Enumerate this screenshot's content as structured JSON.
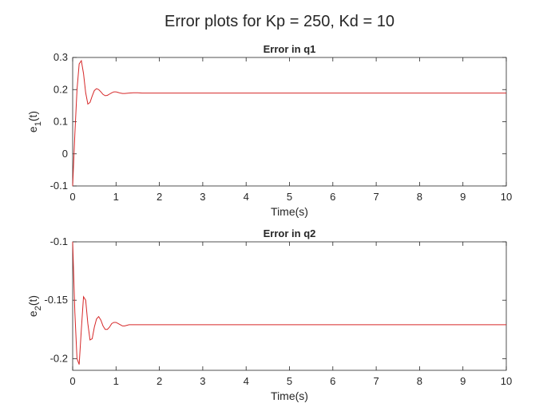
{
  "figure": {
    "title": "Error plots for Kp = 250, Kd = 10"
  },
  "colors": {
    "line": "#d62728",
    "axes": "#262626",
    "background": "#ffffff"
  },
  "chart_data": [
    {
      "type": "line",
      "title": "Error in q1",
      "xlabel": "Time(s)",
      "ylabel": {
        "base": "e",
        "sub": "1",
        "suffix": "(t)"
      },
      "xlim": [
        0,
        10
      ],
      "ylim": [
        -0.1,
        0.3
      ],
      "xticks": [
        0,
        1,
        2,
        3,
        4,
        5,
        6,
        7,
        8,
        9,
        10
      ],
      "xtick_labels": [
        "0",
        "1",
        "2",
        "3",
        "4",
        "5",
        "6",
        "7",
        "8",
        "9",
        "10"
      ],
      "yticks": [
        -0.1,
        0,
        0.1,
        0.2,
        0.3
      ],
      "ytick_labels": [
        "-0.1",
        "0",
        "0.1",
        "0.2",
        "0.3"
      ],
      "grid": false,
      "series": [
        {
          "color": "#d62728",
          "x": [
            0,
            0.05,
            0.1,
            0.15,
            0.2,
            0.25,
            0.3,
            0.35,
            0.4,
            0.45,
            0.5,
            0.55,
            0.6,
            0.65,
            0.7,
            0.75,
            0.8,
            0.85,
            0.9,
            0.95,
            1.0,
            1.05,
            1.1,
            1.15,
            1.2,
            1.3,
            1.4,
            1.5,
            1.6,
            1.8,
            2.0,
            3.0,
            4.0,
            5.0,
            6.0,
            7.0,
            8.0,
            9.0,
            10.0
          ],
          "y": [
            -0.1,
            0.06,
            0.2,
            0.28,
            0.29,
            0.25,
            0.19,
            0.155,
            0.16,
            0.18,
            0.197,
            0.203,
            0.2,
            0.193,
            0.185,
            0.181,
            0.182,
            0.186,
            0.19,
            0.193,
            0.193,
            0.191,
            0.189,
            0.188,
            0.188,
            0.189,
            0.19,
            0.19,
            0.189,
            0.189,
            0.189,
            0.189,
            0.189,
            0.189,
            0.189,
            0.189,
            0.189,
            0.189,
            0.189
          ]
        }
      ]
    },
    {
      "type": "line",
      "title": "Error in q2",
      "xlabel": "Time(s)",
      "ylabel": {
        "base": "e",
        "sub": "2",
        "suffix": "(t)"
      },
      "xlim": [
        0,
        10
      ],
      "ylim": [
        -0.21,
        -0.1
      ],
      "xticks": [
        0,
        1,
        2,
        3,
        4,
        5,
        6,
        7,
        8,
        9,
        10
      ],
      "xtick_labels": [
        "0",
        "1",
        "2",
        "3",
        "4",
        "5",
        "6",
        "7",
        "8",
        "9",
        "10"
      ],
      "yticks": [
        -0.2,
        -0.15,
        -0.1
      ],
      "ytick_labels": [
        "-0.2",
        "-0.15",
        "-0.1"
      ],
      "grid": false,
      "series": [
        {
          "color": "#d62728",
          "x": [
            0,
            0.05,
            0.1,
            0.15,
            0.2,
            0.25,
            0.3,
            0.35,
            0.4,
            0.45,
            0.5,
            0.55,
            0.6,
            0.65,
            0.7,
            0.75,
            0.8,
            0.85,
            0.9,
            0.95,
            1.0,
            1.05,
            1.1,
            1.15,
            1.2,
            1.3,
            1.4,
            1.5,
            1.6,
            1.8,
            2.0,
            3.0,
            4.0,
            5.0,
            6.0,
            7.0,
            8.0,
            9.0,
            10.0
          ],
          "y": [
            -0.1,
            -0.16,
            -0.2,
            -0.205,
            -0.175,
            -0.147,
            -0.15,
            -0.17,
            -0.184,
            -0.183,
            -0.173,
            -0.166,
            -0.164,
            -0.167,
            -0.172,
            -0.175,
            -0.175,
            -0.173,
            -0.17,
            -0.169,
            -0.169,
            -0.17,
            -0.171,
            -0.172,
            -0.172,
            -0.171,
            -0.171,
            -0.171,
            -0.171,
            -0.171,
            -0.171,
            -0.171,
            -0.171,
            -0.171,
            -0.171,
            -0.171,
            -0.171,
            -0.171,
            -0.171
          ]
        }
      ]
    }
  ]
}
